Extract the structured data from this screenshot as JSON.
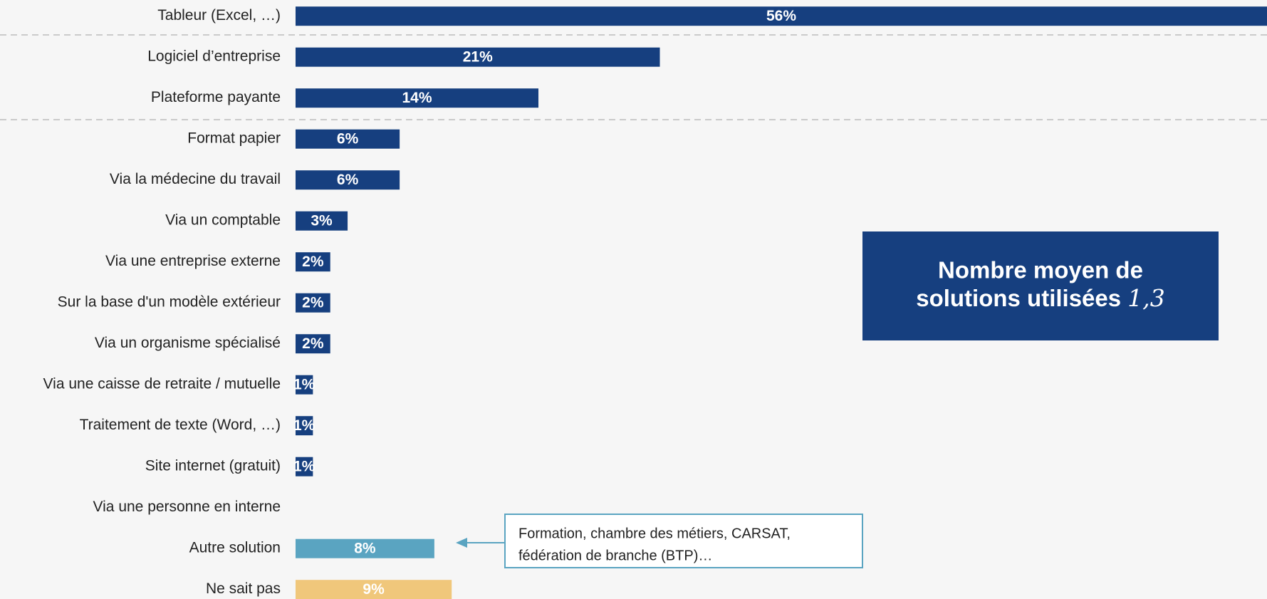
{
  "chart_data": {
    "type": "bar",
    "orientation": "horizontal",
    "categories": [
      "Tableur (Excel, …)",
      "Logiciel d’entreprise",
      "Plateforme payante",
      "Format papier",
      "Via la médecine du travail",
      "Via un comptable",
      "Via une entreprise externe",
      "Sur la base d'un modèle extérieur",
      "Via un organisme spécialisé",
      "Via une caisse de retraite / mutuelle",
      "Traitement de texte (Word, …)",
      "Site internet (gratuit)",
      "Via une personne en interne",
      "Autre solution",
      "Ne sait pas"
    ],
    "values": [
      56,
      21,
      14,
      6,
      6,
      3,
      2,
      2,
      2,
      1,
      1,
      1,
      0,
      8,
      9
    ],
    "value_labels": [
      "56%",
      "21%",
      "14%",
      "6%",
      "6%",
      "3%",
      "2%",
      "2%",
      "2%",
      "1%",
      "1%",
      "1%",
      null,
      "8%",
      "9%"
    ],
    "colors": [
      "#163f7f",
      "#163f7f",
      "#163f7f",
      "#163f7f",
      "#163f7f",
      "#163f7f",
      "#163f7f",
      "#163f7f",
      "#163f7f",
      "#163f7f",
      "#163f7f",
      "#163f7f",
      "#163f7f",
      "#5aa4c1",
      "#f0c77b"
    ],
    "summary_box": {
      "text_lines": [
        "Nombre moyen de",
        "solutions utilisées"
      ],
      "value_label": "1,3"
    },
    "callout": {
      "text_lines": [
        "Formation, chambre des métiers, CARSAT,",
        "fédération de branche (BTP)…"
      ]
    }
  }
}
